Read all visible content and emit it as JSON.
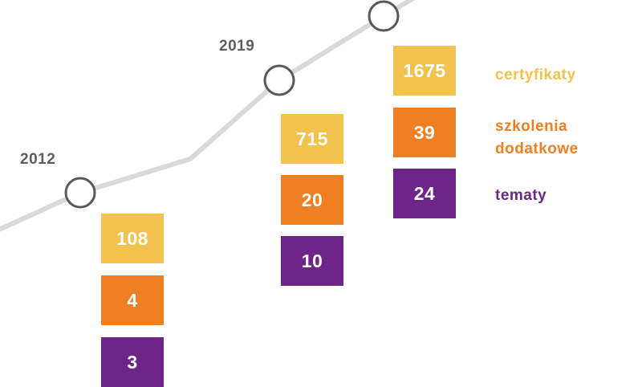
{
  "colors": {
    "line": "#d9d9d9",
    "node_fill": "#ffffff",
    "node_stroke": "#595959",
    "certyfikaty": "#f2c14e",
    "szkolenia": "#ee7f22",
    "tematy": "#6e2587"
  },
  "milestones": [
    {
      "year": "2012",
      "certyfikaty": "108",
      "szkolenia": "4",
      "tematy": "3"
    },
    {
      "year": "2019",
      "certyfikaty": "715",
      "szkolenia": "20",
      "tematy": "10"
    },
    {
      "year": "",
      "certyfikaty": "1675",
      "szkolenia": "39",
      "tematy": "24"
    }
  ],
  "legend": {
    "certyfikaty": "certyfikaty",
    "szkolenia_line1": "szkolenia",
    "szkolenia_line2": "dodatkowe",
    "tematy": "tematy"
  }
}
